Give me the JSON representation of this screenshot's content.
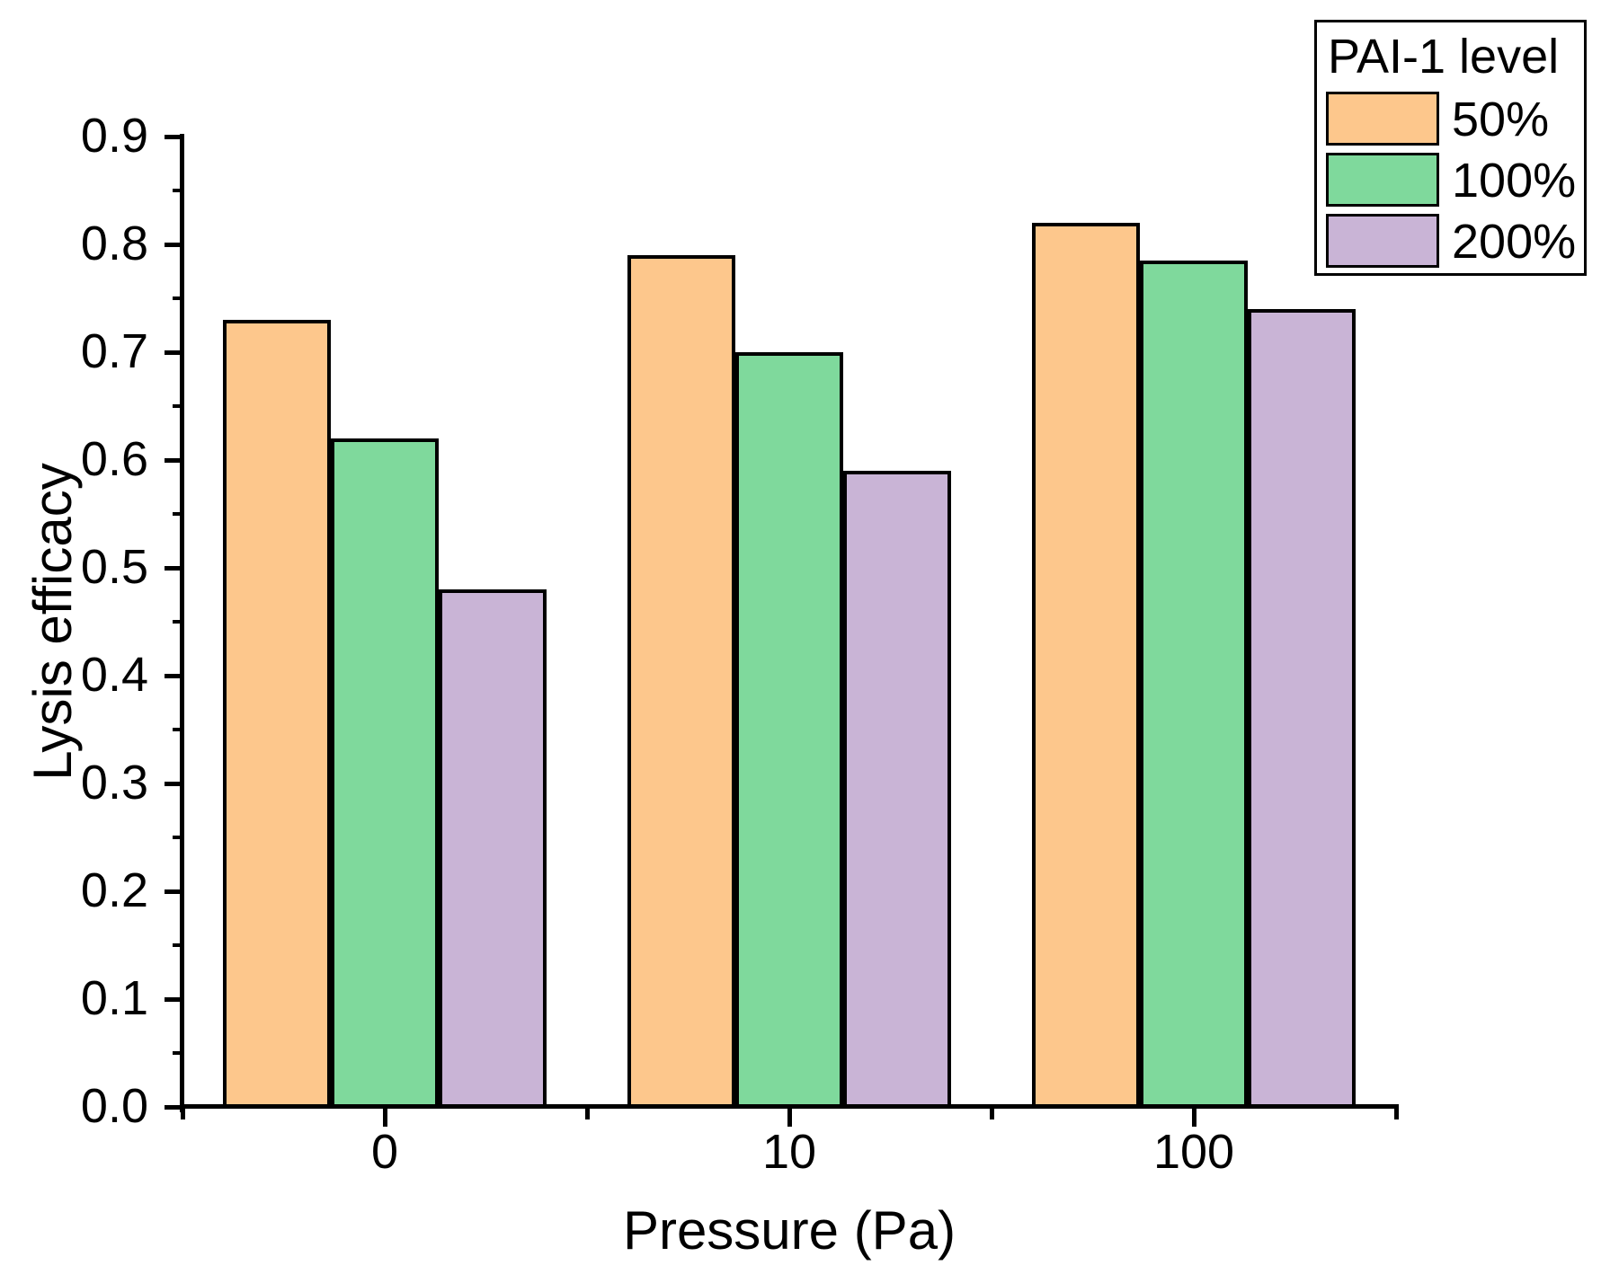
{
  "chart_data": {
    "type": "bar",
    "title": "",
    "xlabel": "Pressure (Pa)",
    "ylabel": "Lysis efficacy",
    "categories": [
      "0",
      "10",
      "100"
    ],
    "series": [
      {
        "name": "50%",
        "color": "#FDC78C",
        "values": [
          0.73,
          0.79,
          0.82
        ]
      },
      {
        "name": "100%",
        "color": "#7FD99C",
        "values": [
          0.62,
          0.7,
          0.785
        ]
      },
      {
        "name": "200%",
        "color": "#C9B4D6",
        "values": [
          0.48,
          0.59,
          0.74
        ]
      }
    ],
    "legend_title": "PAI-1 level",
    "legend_position": "top-right",
    "ylim": [
      0.0,
      0.9
    ],
    "ytick_step": 0.1,
    "ytick_minor_step": 0.05,
    "ytick_labels": [
      "0.0",
      "0.1",
      "0.2",
      "0.3",
      "0.4",
      "0.5",
      "0.6",
      "0.7",
      "0.8",
      "0.9"
    ],
    "grid": false,
    "bar_edge_color": "#000000",
    "axis_color": "#000000",
    "background_color": "#FFFFFF"
  }
}
